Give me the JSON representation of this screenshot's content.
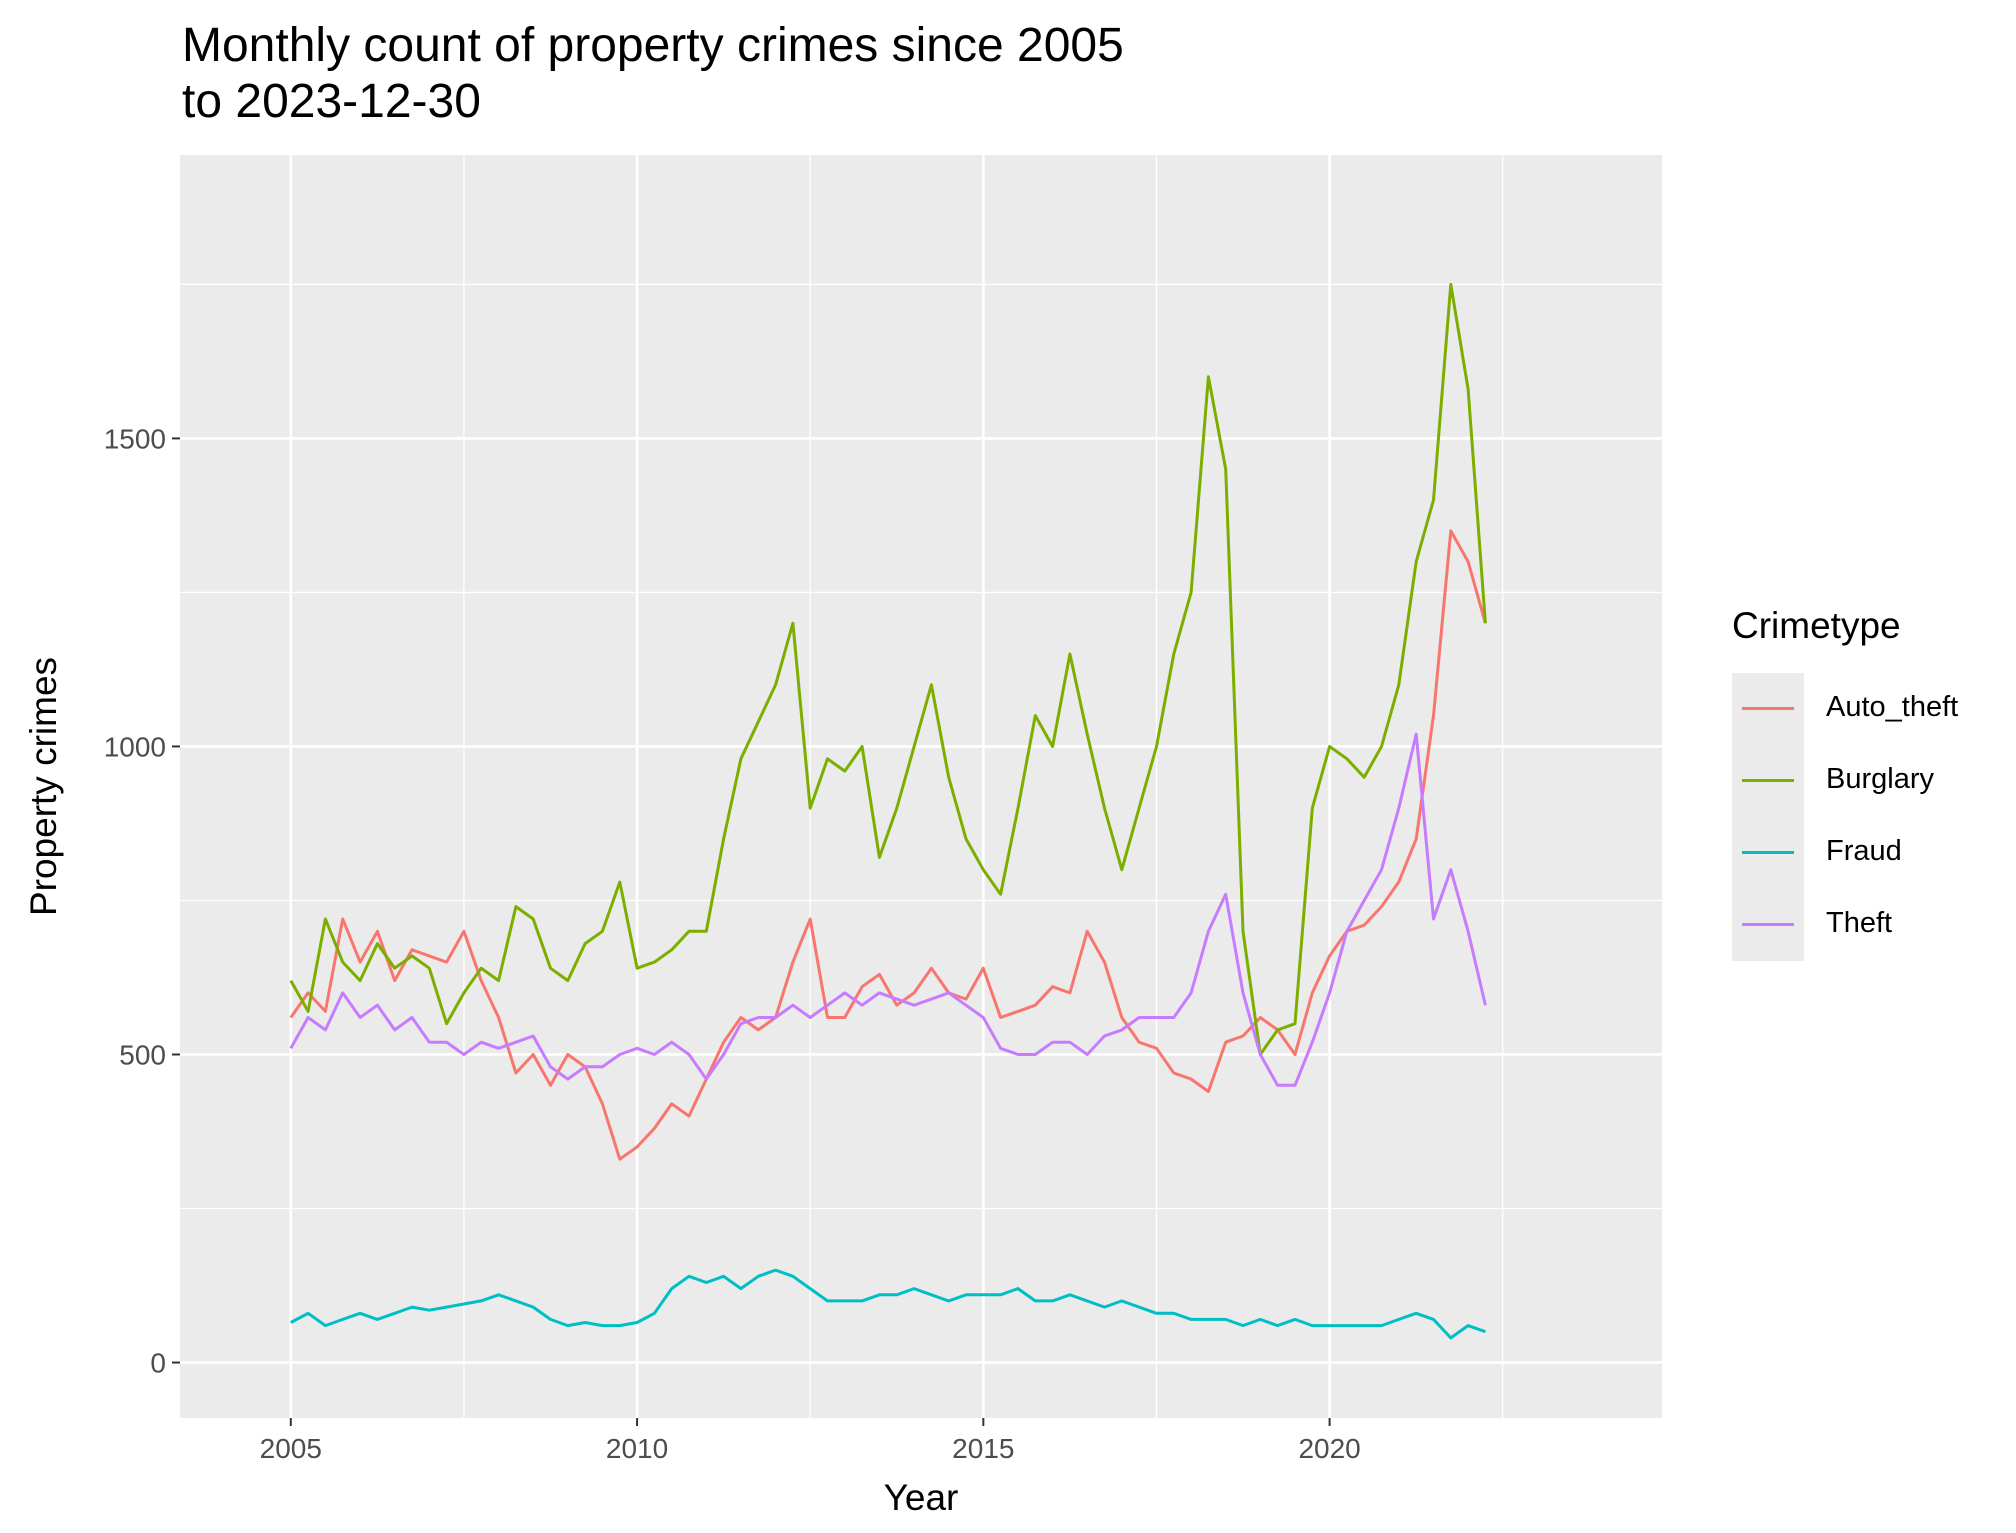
{
  "chart_data": {
    "type": "line",
    "title": "Monthly count of property crimes since 2005",
    "subtitle": "to 2023-12-30",
    "xlabel": "Year",
    "ylabel": "Property crimes",
    "xlim": [
      2003.4,
      2024.8
    ],
    "ylim": [
      -90,
      1960
    ],
    "xticks": [
      2005,
      2010,
      2015,
      2020
    ],
    "yticks": [
      0,
      500,
      1000,
      1500
    ],
    "grid": true,
    "legend_title": "Crimetype",
    "legend_position": "right",
    "x_start": 2005.0,
    "x_step": 0.25,
    "series": [
      {
        "name": "Auto_theft",
        "color": "#F8766D",
        "values": [
          560,
          600,
          570,
          720,
          650,
          700,
          620,
          670,
          660,
          650,
          700,
          620,
          560,
          470,
          500,
          450,
          500,
          480,
          420,
          330,
          350,
          380,
          420,
          400,
          460,
          520,
          560,
          540,
          560,
          650,
          720,
          560,
          560,
          610,
          630,
          580,
          600,
          640,
          600,
          590,
          640,
          560,
          570,
          580,
          610,
          600,
          700,
          650,
          560,
          520,
          510,
          470,
          460,
          440,
          520,
          530,
          560,
          540,
          500,
          600,
          660,
          700,
          710,
          740,
          780,
          850,
          1050,
          1350,
          1300,
          1200
        ]
      },
      {
        "name": "Burglary",
        "color": "#7CAE00",
        "values": [
          620,
          570,
          720,
          650,
          620,
          680,
          640,
          660,
          640,
          550,
          600,
          640,
          620,
          740,
          720,
          640,
          620,
          680,
          700,
          780,
          640,
          650,
          670,
          700,
          700,
          850,
          980,
          1040,
          1100,
          1200,
          900,
          980,
          960,
          1000,
          820,
          900,
          1000,
          1100,
          950,
          850,
          800,
          760,
          900,
          1050,
          1000,
          1150,
          1020,
          900,
          800,
          900,
          1000,
          1150,
          1250,
          1600,
          1450,
          700,
          500,
          540,
          550,
          900,
          1000,
          980,
          950,
          1000,
          1100,
          1300,
          1400,
          1750,
          1580,
          1200
        ]
      },
      {
        "name": "Fraud",
        "color": "#00BFC4",
        "values": [
          65,
          80,
          60,
          70,
          80,
          70,
          80,
          90,
          85,
          90,
          95,
          100,
          110,
          100,
          90,
          70,
          60,
          65,
          60,
          60,
          65,
          80,
          120,
          140,
          130,
          140,
          120,
          140,
          150,
          140,
          120,
          100,
          100,
          100,
          110,
          110,
          120,
          110,
          100,
          110,
          110,
          110,
          120,
          100,
          100,
          110,
          100,
          90,
          100,
          90,
          80,
          80,
          70,
          70,
          70,
          60,
          70,
          60,
          70,
          60,
          60,
          60,
          60,
          60,
          70,
          80,
          70,
          40,
          60,
          50
        ]
      },
      {
        "name": "Theft",
        "color": "#C77CFF",
        "values": [
          510,
          560,
          540,
          600,
          560,
          580,
          540,
          560,
          520,
          520,
          500,
          520,
          510,
          520,
          530,
          480,
          460,
          480,
          480,
          500,
          510,
          500,
          520,
          500,
          460,
          500,
          550,
          560,
          560,
          580,
          560,
          580,
          600,
          580,
          600,
          590,
          580,
          590,
          600,
          580,
          560,
          510,
          500,
          500,
          520,
          520,
          500,
          530,
          540,
          560,
          560,
          560,
          600,
          700,
          760,
          600,
          500,
          450,
          450,
          520,
          600,
          700,
          750,
          800,
          900,
          1020,
          720,
          800,
          700,
          580
        ]
      }
    ]
  }
}
